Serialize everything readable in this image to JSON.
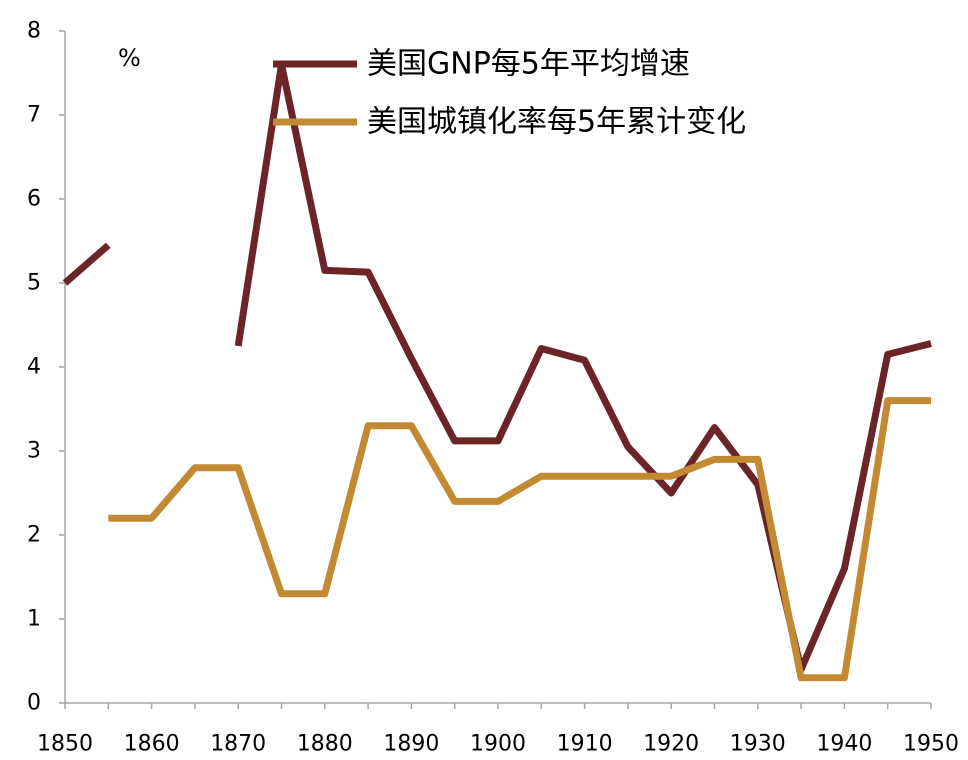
{
  "chart_data": {
    "type": "line",
    "unit_label": "%",
    "xlim": [
      1850,
      1950
    ],
    "ylim": [
      0,
      8
    ],
    "x_ticks": [
      1850,
      1860,
      1870,
      1880,
      1890,
      1900,
      1910,
      1920,
      1930,
      1940,
      1950
    ],
    "y_ticks": [
      0,
      1,
      2,
      3,
      4,
      5,
      6,
      7,
      8
    ],
    "grid": false,
    "legend_position": "top",
    "series": [
      {
        "name": "美国GNP每5年平均增速",
        "color": "#6B2428",
        "segments": [
          [
            [
              1850,
              5.0
            ],
            [
              1855,
              5.45
            ]
          ],
          [
            [
              1870,
              4.25
            ],
            [
              1875,
              7.6
            ],
            [
              1880,
              5.15
            ],
            [
              1885,
              5.13
            ],
            [
              1890,
              4.1
            ],
            [
              1895,
              3.12
            ],
            [
              1900,
              3.12
            ],
            [
              1905,
              4.22
            ],
            [
              1910,
              4.08
            ],
            [
              1915,
              3.05
            ],
            [
              1920,
              2.5
            ],
            [
              1925,
              3.28
            ],
            [
              1930,
              2.6
            ],
            [
              1935,
              0.4
            ],
            [
              1940,
              1.6
            ],
            [
              1945,
              4.15
            ],
            [
              1950,
              4.28
            ]
          ]
        ]
      },
      {
        "name": "美国城镇化率每5年累计变化",
        "color": "#C28A33",
        "segments": [
          [
            [
              1855,
              2.2
            ],
            [
              1860,
              2.2
            ],
            [
              1865,
              2.8
            ],
            [
              1870,
              2.8
            ],
            [
              1875,
              1.3
            ],
            [
              1880,
              1.3
            ],
            [
              1885,
              3.3
            ],
            [
              1890,
              3.3
            ],
            [
              1895,
              2.4
            ],
            [
              1900,
              2.4
            ],
            [
              1905,
              2.7
            ],
            [
              1910,
              2.7
            ],
            [
              1915,
              2.7
            ],
            [
              1920,
              2.7
            ],
            [
              1925,
              2.9
            ],
            [
              1930,
              2.9
            ],
            [
              1935,
              0.3
            ],
            [
              1940,
              0.3
            ],
            [
              1945,
              3.6
            ],
            [
              1950,
              3.6
            ]
          ]
        ]
      }
    ]
  }
}
